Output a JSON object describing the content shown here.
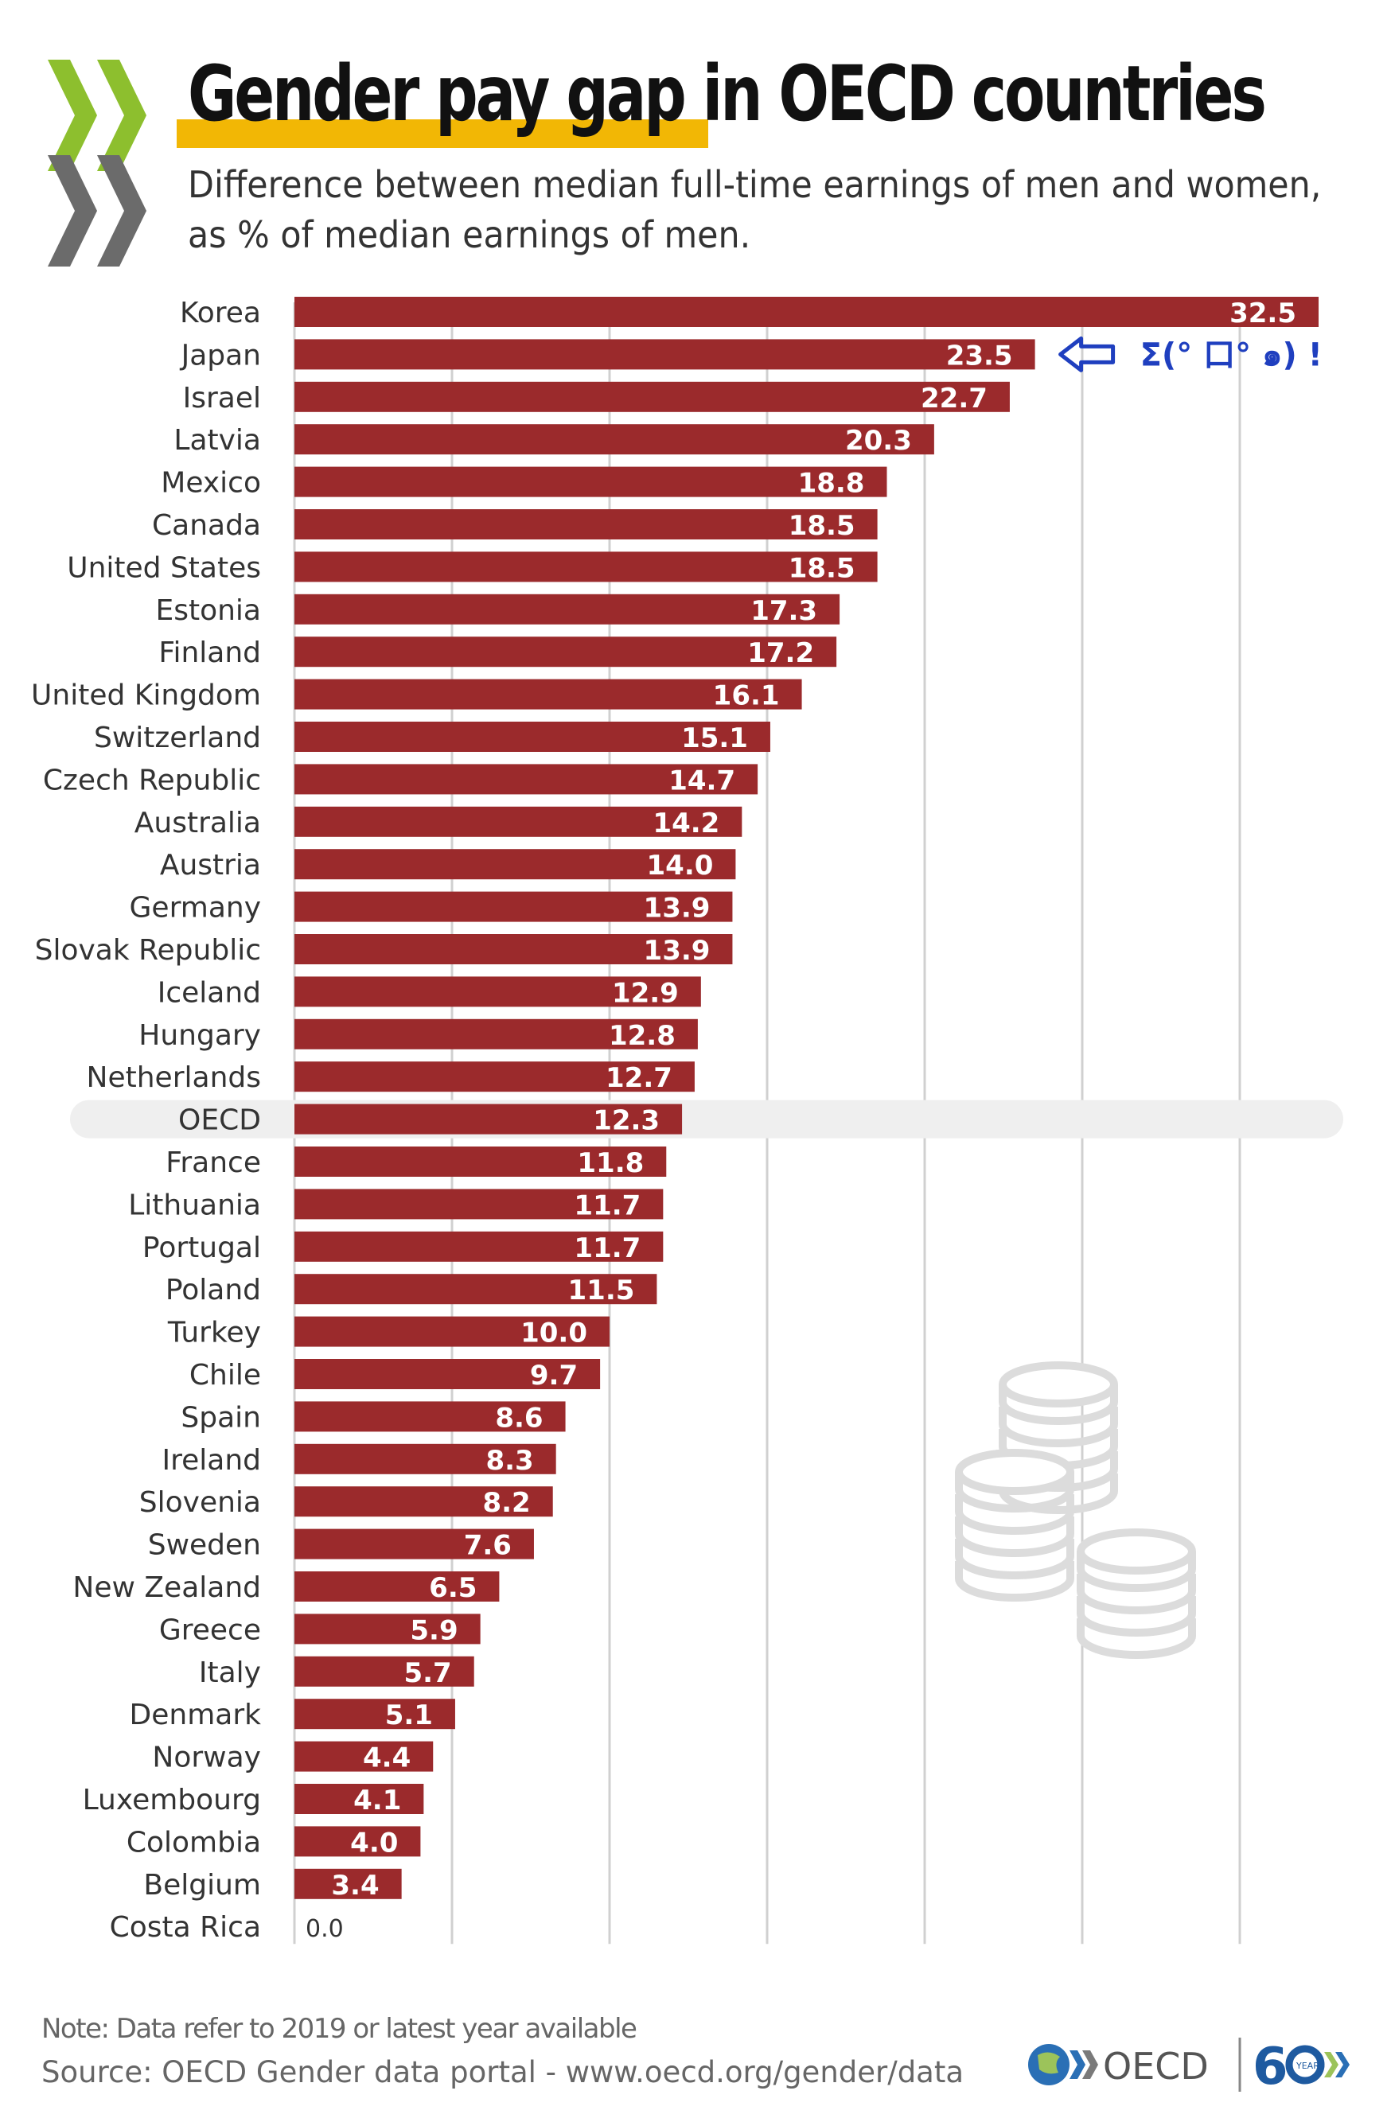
{
  "header": {
    "title": "Gender pay gap in OECD countries",
    "subtitle_line1": "Difference between median full-time earnings of men and women,",
    "subtitle_line2": "as % of median earnings of men."
  },
  "annotation": {
    "text": "Σ(° 口° ๑) !",
    "target": "Japan"
  },
  "footer": {
    "note": "Note:  Data refer to 2019 or latest year available",
    "source": "Source: OECD Gender data portal - www.oecd.org/gender/data",
    "logo_text": "OECD",
    "anniversary_text": "6",
    "anniversary_sub": "YEARS"
  },
  "colors": {
    "bar": "#9b2a2c",
    "highlight_row": "#efefef",
    "grid": "#d0d0d0",
    "annotation": "#1f3fbf",
    "title_highlight": "#f2b705"
  },
  "chart_data": {
    "type": "bar",
    "orientation": "horizontal",
    "title": "Gender pay gap in OECD countries",
    "xlabel": "",
    "ylabel": "",
    "xlim": [
      0,
      35
    ],
    "grid": true,
    "highlight_category": "OECD",
    "categories": [
      "Korea",
      "Japan",
      "Israel",
      "Latvia",
      "Mexico",
      "Canada",
      "United States",
      "Estonia",
      "Finland",
      "United Kingdom",
      "Switzerland",
      "Czech Republic",
      "Australia",
      "Austria",
      "Germany",
      "Slovak Republic",
      "Iceland",
      "Hungary",
      "Netherlands",
      "OECD",
      "France",
      "Lithuania",
      "Portugal",
      "Poland",
      "Turkey",
      "Chile",
      "Spain",
      "Ireland",
      "Slovenia",
      "Sweden",
      "New Zealand",
      "Greece",
      "Italy",
      "Denmark",
      "Norway",
      "Luxembourg",
      "Colombia",
      "Belgium",
      "Costa Rica"
    ],
    "values": [
      32.5,
      23.5,
      22.7,
      20.3,
      18.8,
      18.5,
      18.5,
      17.3,
      17.2,
      16.1,
      15.1,
      14.7,
      14.2,
      14.0,
      13.9,
      13.9,
      12.9,
      12.8,
      12.7,
      12.3,
      11.8,
      11.7,
      11.7,
      11.5,
      10.0,
      9.7,
      8.6,
      8.3,
      8.2,
      7.6,
      6.5,
      5.9,
      5.7,
      5.1,
      4.4,
      4.1,
      4.0,
      3.4,
      0.0
    ],
    "labels": [
      "32.5",
      "23.5",
      "22.7",
      "20.3",
      "18.8",
      "18.5",
      "18.5",
      "17.3",
      "17.2",
      "16.1",
      "15.1",
      "14.7",
      "14.2",
      "14.0",
      "13.9",
      "13.9",
      "12.9",
      "12.8",
      "12.7",
      "12.3",
      "11.8",
      "11.7",
      "11.7",
      "11.5",
      "10.0",
      "9.7",
      "8.6",
      "8.3",
      "8.2",
      "7.6",
      "6.5",
      "5.9",
      "5.7",
      "5.1",
      "4.4",
      "4.1",
      "4.0",
      "3.4",
      "0.0"
    ]
  }
}
